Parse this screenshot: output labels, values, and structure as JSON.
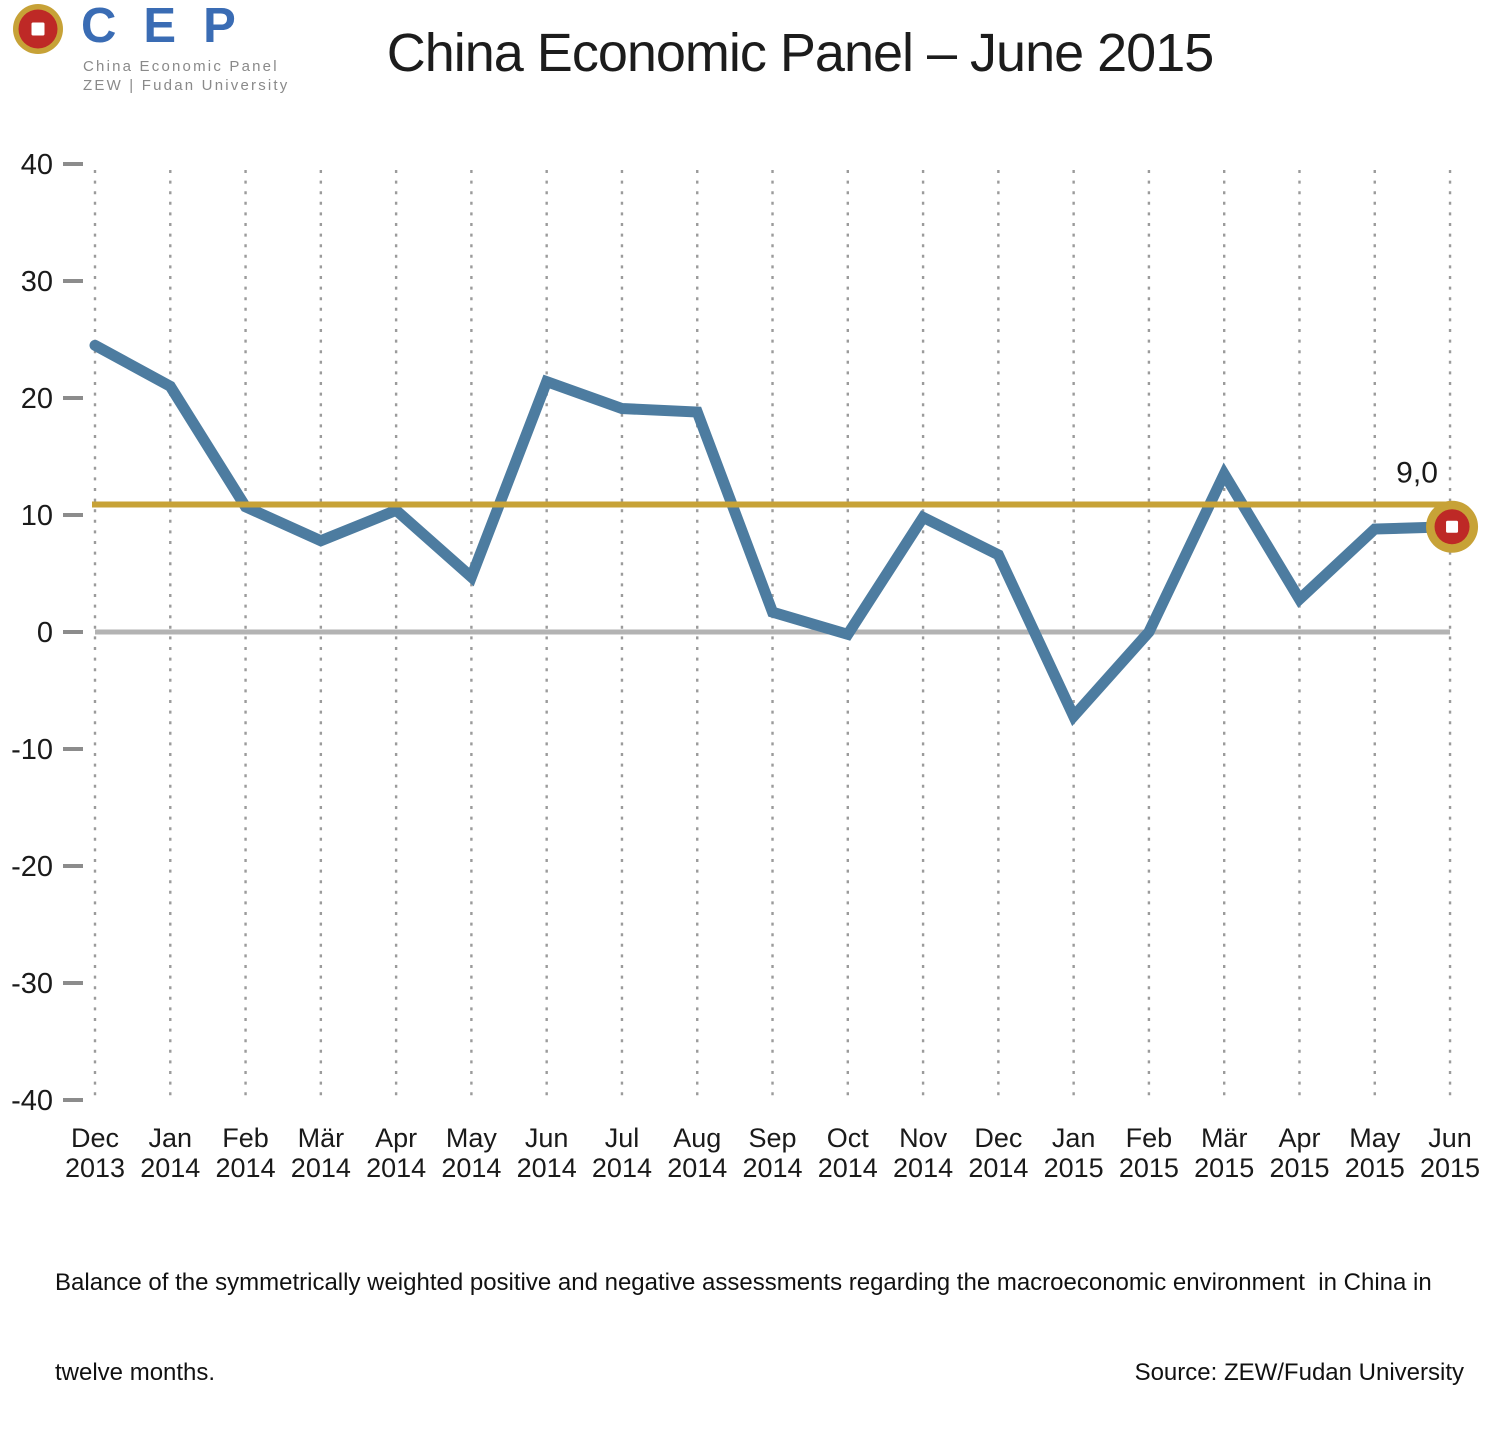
{
  "title": "China Economic Panel – June 2015",
  "logo": {
    "acronym": "CEP",
    "subtitle_line1": "China Economic Panel",
    "subtitle_line2": "ZEW | Fudan University",
    "acronym_color": "#3A6CB4",
    "coin_icon_colors": {
      "ring": "#C7A237",
      "face": "#BE2926",
      "hole": "#FFFFFF"
    }
  },
  "chart_data": {
    "type": "line",
    "title": "China Economic Panel – June 2015",
    "xlabel": "",
    "ylabel": "",
    "ylim": [
      -40,
      40
    ],
    "ytick_step": 10,
    "grid": "vertical-dotted",
    "gridline_color": "#9B9B9B",
    "axis_text_color": "#1A1A1A",
    "tick_color": "#8C8C8C",
    "categories": [
      "Dec 2013",
      "Jan 2014",
      "Feb 2014",
      "Mär 2014",
      "Apr 2014",
      "May 2014",
      "Jun 2014",
      "Jul 2014",
      "Aug 2014",
      "Sep 2014",
      "Oct 2014",
      "Nov 2014",
      "Dec 2014",
      "Jan 2015",
      "Feb 2015",
      "Mär 2015",
      "Apr 2015",
      "May 2015",
      "Jun 2015"
    ],
    "values": [
      24.5,
      21.0,
      10.7,
      7.8,
      10.4,
      4.7,
      21.4,
      19.1,
      18.8,
      1.7,
      -0.2,
      9.8,
      6.6,
      -7.2,
      0.0,
      13.5,
      2.8,
      8.8,
      9.0
    ],
    "line_color": "#4D7CA0",
    "reference_line": {
      "value": 10.9,
      "color": "#C7A237"
    },
    "zero_line": {
      "value": 0,
      "color": "#B3B3B3"
    },
    "last_point": {
      "category": "Jun 2015",
      "value": 9.0,
      "label": "9,0",
      "marker_colors": {
        "ring": "#C7A237",
        "face": "#BE2926",
        "hole": "#FFFFFF"
      }
    }
  },
  "footer": {
    "line1": "Balance of the symmetrically weighted positive and negative assessments regarding the macroeconomic environment  in China in",
    "line2": "twelve months.",
    "source": "Source: ZEW/Fudan University"
  }
}
